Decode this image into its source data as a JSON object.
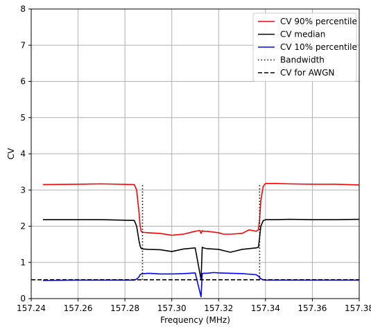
{
  "chart_data": {
    "type": "line",
    "xlabel": "Frequency (MHz)",
    "ylabel": "CV",
    "xlim": [
      157.24,
      157.38
    ],
    "ylim": [
      0,
      8
    ],
    "xticks": [
      157.24,
      157.26,
      157.28,
      157.3,
      157.32,
      157.34,
      157.36,
      157.38
    ],
    "xtick_labels": [
      "157.24",
      "157.26",
      "157.28",
      "157.30",
      "157.32",
      "157.34",
      "157.36",
      "157.38"
    ],
    "yticks": [
      0,
      1,
      2,
      3,
      4,
      5,
      6,
      7,
      8
    ],
    "ytick_labels": [
      "0",
      "1",
      "2",
      "3",
      "4",
      "5",
      "6",
      "7",
      "8"
    ],
    "grid": true,
    "legend_position": "top-right",
    "series": [
      {
        "name": "CV 90% percentile",
        "color": "#ff0000",
        "style": "solid",
        "x": [
          157.245,
          157.26,
          157.27,
          157.284,
          157.285,
          157.286,
          157.2865,
          157.287,
          157.288,
          157.29,
          157.295,
          157.3,
          157.305,
          157.31,
          157.312,
          157.3125,
          157.313,
          157.3135,
          157.315,
          157.32,
          157.322,
          157.325,
          157.33,
          157.333,
          157.336,
          157.337,
          157.3375,
          157.338,
          157.339,
          157.34,
          157.345,
          157.35,
          157.36,
          157.37,
          157.38
        ],
        "y": [
          3.15,
          3.16,
          3.17,
          3.15,
          3.0,
          2.4,
          2.0,
          1.85,
          1.83,
          1.82,
          1.8,
          1.75,
          1.78,
          1.86,
          1.88,
          1.8,
          1.88,
          1.86,
          1.86,
          1.82,
          1.78,
          1.78,
          1.8,
          1.9,
          1.86,
          1.9,
          2.2,
          2.7,
          3.1,
          3.18,
          3.18,
          3.17,
          3.16,
          3.16,
          3.14
        ]
      },
      {
        "name": "CV median",
        "color": "#000000",
        "style": "solid",
        "x": [
          157.245,
          157.26,
          157.27,
          157.284,
          157.285,
          157.286,
          157.2865,
          157.287,
          157.288,
          157.29,
          157.295,
          157.3,
          157.305,
          157.31,
          157.3125,
          157.313,
          157.3135,
          157.315,
          157.32,
          157.325,
          157.33,
          157.336,
          157.337,
          157.3375,
          157.338,
          157.339,
          157.34,
          157.345,
          157.35,
          157.36,
          157.37,
          157.38
        ],
        "y": [
          2.18,
          2.18,
          2.18,
          2.16,
          2.0,
          1.6,
          1.45,
          1.38,
          1.37,
          1.36,
          1.35,
          1.3,
          1.37,
          1.4,
          0.52,
          1.42,
          1.4,
          1.38,
          1.36,
          1.28,
          1.36,
          1.4,
          1.42,
          1.7,
          2.0,
          2.15,
          2.18,
          2.18,
          2.19,
          2.18,
          2.18,
          2.19
        ]
      },
      {
        "name": "CV 10% percentile",
        "color": "#0000ff",
        "style": "solid",
        "x": [
          157.245,
          157.26,
          157.27,
          157.284,
          157.285,
          157.286,
          157.2865,
          157.287,
          157.29,
          157.295,
          157.3,
          157.305,
          157.31,
          157.3125,
          157.313,
          157.3135,
          157.315,
          157.318,
          157.32,
          157.325,
          157.33,
          157.336,
          157.337,
          157.3375,
          157.338,
          157.339,
          157.34,
          157.35,
          157.36,
          157.37,
          157.38
        ],
        "y": [
          0.5,
          0.51,
          0.51,
          0.51,
          0.54,
          0.6,
          0.66,
          0.68,
          0.7,
          0.68,
          0.68,
          0.69,
          0.71,
          0.05,
          0.69,
          0.7,
          0.7,
          0.72,
          0.71,
          0.7,
          0.69,
          0.66,
          0.62,
          0.58,
          0.55,
          0.52,
          0.51,
          0.51,
          0.51,
          0.51,
          0.51
        ]
      },
      {
        "name": "Bandwidth",
        "color": "#000000",
        "style": "dotted",
        "segments": [
          {
            "x": [
              157.2875,
              157.2875
            ],
            "y": [
              0.52,
              3.15
            ]
          },
          {
            "x": [
              157.3375,
              157.3375
            ],
            "y": [
              0.52,
              3.15
            ]
          }
        ]
      },
      {
        "name": "CV for AWGN",
        "color": "#000000",
        "style": "dashed",
        "x": [
          157.24,
          157.38
        ],
        "y": [
          0.52,
          0.52
        ]
      }
    ]
  }
}
